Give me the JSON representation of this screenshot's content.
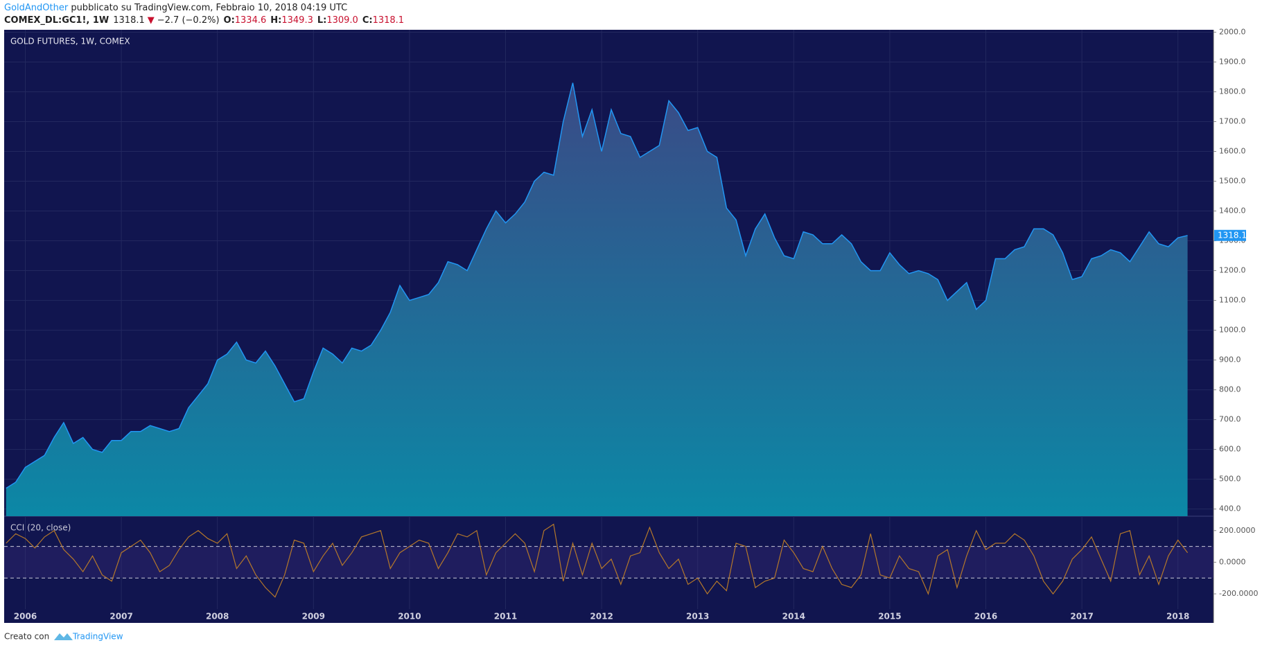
{
  "header": {
    "author": "GoldAndOther",
    "published": " pubblicato su TradingView.com, Febbraio 10, 2018 04:19 UTC",
    "symbol": "COMEX_DL:GC1!, 1W",
    "last": "1318.1",
    "arrow": "▼",
    "change": "−2.7 (−0.2%)",
    "open_label": "O:",
    "open": "1334.6",
    "high_label": "H:",
    "high": "1349.3",
    "low_label": "L:",
    "low": "1309.0",
    "close_label": "C:",
    "close": "1318.1"
  },
  "footer": {
    "made_with": "Creato con",
    "brand": "TradingView"
  },
  "chart_data": [
    {
      "type": "area",
      "title": "GOLD FUTURES, 1W, COMEX",
      "color": "#2196f3",
      "x": [
        2005.8,
        2005.9,
        2006.0,
        2006.1,
        2006.2,
        2006.3,
        2006.4,
        2006.5,
        2006.6,
        2006.7,
        2006.8,
        2006.9,
        2007.0,
        2007.1,
        2007.2,
        2007.3,
        2007.4,
        2007.5,
        2007.6,
        2007.7,
        2007.8,
        2007.9,
        2008.0,
        2008.1,
        2008.2,
        2008.3,
        2008.4,
        2008.5,
        2008.6,
        2008.7,
        2008.8,
        2008.9,
        2009.0,
        2009.1,
        2009.2,
        2009.3,
        2009.4,
        2009.5,
        2009.6,
        2009.7,
        2009.8,
        2009.9,
        2010.0,
        2010.1,
        2010.2,
        2010.3,
        2010.4,
        2010.5,
        2010.6,
        2010.7,
        2010.8,
        2010.9,
        2011.0,
        2011.1,
        2011.2,
        2011.3,
        2011.4,
        2011.5,
        2011.6,
        2011.7,
        2011.8,
        2011.9,
        2012.0,
        2012.1,
        2012.2,
        2012.3,
        2012.4,
        2012.5,
        2012.6,
        2012.7,
        2012.8,
        2012.9,
        2013.0,
        2013.1,
        2013.2,
        2013.3,
        2013.4,
        2013.5,
        2013.6,
        2013.7,
        2013.8,
        2013.9,
        2014.0,
        2014.1,
        2014.2,
        2014.3,
        2014.4,
        2014.5,
        2014.6,
        2014.7,
        2014.8,
        2014.9,
        2015.0,
        2015.1,
        2015.2,
        2015.3,
        2015.4,
        2015.5,
        2015.6,
        2015.7,
        2015.8,
        2015.9,
        2016.0,
        2016.1,
        2016.2,
        2016.3,
        2016.4,
        2016.5,
        2016.6,
        2016.7,
        2016.8,
        2016.9,
        2017.0,
        2017.1,
        2017.2,
        2017.3,
        2017.4,
        2017.5,
        2017.6,
        2017.7,
        2017.8,
        2017.9,
        2018.0,
        2018.1
      ],
      "values": [
        470,
        490,
        540,
        560,
        580,
        640,
        690,
        620,
        640,
        600,
        590,
        630,
        630,
        660,
        660,
        680,
        670,
        660,
        670,
        740,
        780,
        820,
        900,
        920,
        960,
        900,
        890,
        930,
        880,
        820,
        760,
        770,
        860,
        940,
        920,
        890,
        940,
        930,
        950,
        1000,
        1060,
        1150,
        1100,
        1110,
        1120,
        1160,
        1230,
        1220,
        1200,
        1270,
        1340,
        1400,
        1360,
        1390,
        1430,
        1500,
        1530,
        1520,
        1700,
        1830,
        1650,
        1740,
        1600,
        1740,
        1660,
        1650,
        1580,
        1600,
        1620,
        1770,
        1730,
        1670,
        1680,
        1600,
        1580,
        1410,
        1370,
        1250,
        1340,
        1390,
        1310,
        1250,
        1240,
        1330,
        1320,
        1290,
        1290,
        1320,
        1290,
        1230,
        1200,
        1200,
        1260,
        1220,
        1190,
        1200,
        1190,
        1170,
        1100,
        1130,
        1160,
        1070,
        1100,
        1240,
        1240,
        1270,
        1280,
        1340,
        1340,
        1320,
        1260,
        1170,
        1180,
        1240,
        1250,
        1270,
        1260,
        1230,
        1280,
        1330,
        1290,
        1280,
        1310,
        1318.1
      ],
      "xlim": [
        2005.78,
        2018.37
      ],
      "xticks": [
        2006,
        2007,
        2008,
        2009,
        2010,
        2011,
        2012,
        2013,
        2014,
        2015,
        2016,
        2017,
        2018
      ],
      "ylim": [
        376,
        2008
      ],
      "yticks": [
        {
          "value": 400,
          "label": "400.0"
        },
        {
          "value": 500,
          "label": "500.0"
        },
        {
          "value": 600,
          "label": "600.0"
        },
        {
          "value": 700,
          "label": "700.0"
        },
        {
          "value": 800,
          "label": "800.0"
        },
        {
          "value": 900,
          "label": "900.0"
        },
        {
          "value": 1000,
          "label": "1000.0"
        },
        {
          "value": 1100,
          "label": "1100.0"
        },
        {
          "value": 1200,
          "label": "1200.0"
        },
        {
          "value": 1300,
          "label": "1300.0"
        },
        {
          "value": 1400,
          "label": "1400.0"
        },
        {
          "value": 1500,
          "label": "1500.0"
        },
        {
          "value": 1600,
          "label": "1600.0"
        },
        {
          "value": 1700,
          "label": "1700.0"
        },
        {
          "value": 1800,
          "label": "1800.0"
        },
        {
          "value": 1900,
          "label": "1900.0"
        },
        {
          "value": 2000,
          "label": "2000.0"
        }
      ],
      "grid": true
    },
    {
      "type": "line",
      "title": "CCI (20, close)",
      "color": "#b5782a",
      "x": [
        2005.8,
        2005.9,
        2006.0,
        2006.1,
        2006.2,
        2006.3,
        2006.4,
        2006.5,
        2006.6,
        2006.7,
        2006.8,
        2006.9,
        2007.0,
        2007.1,
        2007.2,
        2007.3,
        2007.4,
        2007.5,
        2007.6,
        2007.7,
        2007.8,
        2007.9,
        2008.0,
        2008.1,
        2008.2,
        2008.3,
        2008.4,
        2008.5,
        2008.6,
        2008.7,
        2008.8,
        2008.9,
        2009.0,
        2009.1,
        2009.2,
        2009.3,
        2009.4,
        2009.5,
        2009.6,
        2009.7,
        2009.8,
        2009.9,
        2010.0,
        2010.1,
        2010.2,
        2010.3,
        2010.4,
        2010.5,
        2010.6,
        2010.7,
        2010.8,
        2010.9,
        2011.0,
        2011.1,
        2011.2,
        2011.3,
        2011.4,
        2011.5,
        2011.6,
        2011.7,
        2011.8,
        2011.9,
        2012.0,
        2012.1,
        2012.2,
        2012.3,
        2012.4,
        2012.5,
        2012.6,
        2012.7,
        2012.8,
        2012.9,
        2013.0,
        2013.1,
        2013.2,
        2013.3,
        2013.4,
        2013.5,
        2013.6,
        2013.7,
        2013.8,
        2013.9,
        2014.0,
        2014.1,
        2014.2,
        2014.3,
        2014.4,
        2014.5,
        2014.6,
        2014.7,
        2014.8,
        2014.9,
        2015.0,
        2015.1,
        2015.2,
        2015.3,
        2015.4,
        2015.5,
        2015.6,
        2015.7,
        2015.8,
        2015.9,
        2016.0,
        2016.1,
        2016.2,
        2016.3,
        2016.4,
        2016.5,
        2016.6,
        2016.7,
        2016.8,
        2016.9,
        2017.0,
        2017.1,
        2017.2,
        2017.3,
        2017.4,
        2017.5,
        2017.6,
        2017.7,
        2017.8,
        2017.9,
        2018.0,
        2018.1
      ],
      "values": [
        120,
        180,
        150,
        90,
        160,
        200,
        80,
        20,
        -60,
        40,
        -80,
        -120,
        60,
        100,
        140,
        60,
        -60,
        -20,
        80,
        160,
        200,
        150,
        120,
        180,
        -40,
        40,
        -80,
        -160,
        -220,
        -80,
        140,
        120,
        -60,
        40,
        120,
        -20,
        60,
        160,
        180,
        200,
        -40,
        60,
        100,
        140,
        120,
        -40,
        60,
        180,
        160,
        200,
        -80,
        60,
        120,
        180,
        120,
        -60,
        200,
        240,
        -120,
        120,
        -80,
        120,
        -40,
        20,
        -140,
        40,
        60,
        220,
        60,
        -40,
        20,
        -140,
        -100,
        -200,
        -120,
        -180,
        120,
        100,
        -160,
        -120,
        -100,
        140,
        60,
        -40,
        -60,
        100,
        -40,
        -140,
        -160,
        -80,
        180,
        -80,
        -100,
        40,
        -40,
        -60,
        -200,
        40,
        80,
        -160,
        40,
        200,
        80,
        120,
        120,
        180,
        140,
        40,
        -120,
        -200,
        -120,
        20,
        80,
        160,
        20,
        -120,
        180,
        200,
        -80,
        40,
        -140,
        40,
        140,
        60
      ],
      "xlim": [
        2005.78,
        2018.37
      ],
      "ylim": [
        -296,
        291
      ],
      "yticks": [
        {
          "value": 200,
          "label": "200.0000"
        },
        {
          "value": 0,
          "label": "0.0000"
        },
        {
          "value": -200,
          "label": "-200.0000"
        }
      ],
      "bands": [
        100,
        -100
      ]
    }
  ]
}
